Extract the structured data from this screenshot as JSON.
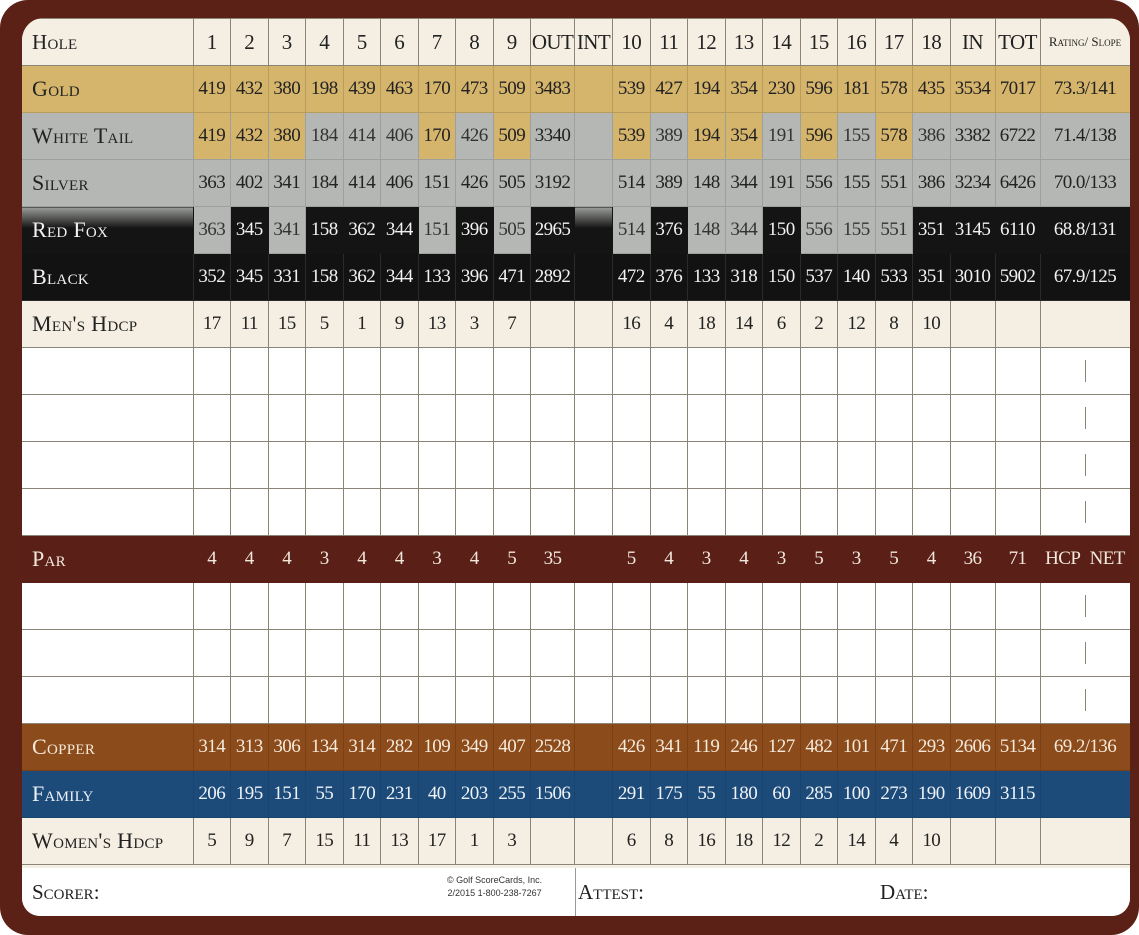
{
  "colors": {
    "gold": "#d5b46c",
    "silver": "#b4b7b3",
    "black": "#121212",
    "par": "#5a1f16",
    "copper": "#8c4b1b",
    "family": "#1d4b79",
    "frame": "#5b2116"
  },
  "header": {
    "label": "Hole",
    "front": [
      "1",
      "2",
      "3",
      "4",
      "5",
      "6",
      "7",
      "8",
      "9"
    ],
    "out": "OUT",
    "int": "INT",
    "back": [
      "10",
      "11",
      "12",
      "13",
      "14",
      "15",
      "16",
      "17",
      "18"
    ],
    "in": "IN",
    "tot": "TOT",
    "rating": "Rating/ Slope"
  },
  "rows": [
    {
      "id": "gold",
      "label": "Gold",
      "front": [
        "419",
        "432",
        "380",
        "198",
        "439",
        "463",
        "170",
        "473",
        "509"
      ],
      "out": "3483",
      "back": [
        "539",
        "427",
        "194",
        "354",
        "230",
        "596",
        "181",
        "578",
        "435"
      ],
      "in": "3534",
      "tot": "7017",
      "rating": "73.3/141"
    },
    {
      "id": "white-tail",
      "label": "White Tail",
      "front": [
        "419",
        "432",
        "380",
        "184",
        "414",
        "406",
        "170",
        "426",
        "509"
      ],
      "front_colors": [
        "gold",
        "gold",
        "gold",
        "silver",
        "silver",
        "silver",
        "gold",
        "silver",
        "gold"
      ],
      "out": "3340",
      "back": [
        "539",
        "389",
        "194",
        "354",
        "191",
        "596",
        "155",
        "578",
        "386"
      ],
      "back_colors": [
        "gold",
        "silver",
        "gold",
        "gold",
        "silver",
        "gold",
        "silver",
        "gold",
        "silver"
      ],
      "in": "3382",
      "tot": "6722",
      "rating": "71.4/138"
    },
    {
      "id": "silver",
      "label": "Silver",
      "front": [
        "363",
        "402",
        "341",
        "184",
        "414",
        "406",
        "151",
        "426",
        "505"
      ],
      "out": "3192",
      "back": [
        "514",
        "389",
        "148",
        "344",
        "191",
        "556",
        "155",
        "551",
        "386"
      ],
      "in": "3234",
      "tot": "6426",
      "rating": "70.0/133"
    },
    {
      "id": "red-fox",
      "label": "Red Fox",
      "front": [
        "363",
        "345",
        "341",
        "158",
        "362",
        "344",
        "151",
        "396",
        "505"
      ],
      "front_colors": [
        "silver",
        "black",
        "silver",
        "black",
        "black",
        "black",
        "silver",
        "black",
        "silver"
      ],
      "out": "2965",
      "back": [
        "514",
        "376",
        "148",
        "344",
        "150",
        "556",
        "155",
        "551",
        "351"
      ],
      "back_colors": [
        "silver",
        "black",
        "silver",
        "silver",
        "black",
        "silver",
        "silver",
        "silver",
        "black"
      ],
      "in": "3145",
      "tot": "6110",
      "rating": "68.8/131"
    },
    {
      "id": "black",
      "label": "Black",
      "front": [
        "352",
        "345",
        "331",
        "158",
        "362",
        "344",
        "133",
        "396",
        "471"
      ],
      "out": "2892",
      "back": [
        "472",
        "376",
        "133",
        "318",
        "150",
        "537",
        "140",
        "533",
        "351"
      ],
      "in": "3010",
      "tot": "5902",
      "rating": "67.9/125"
    },
    {
      "id": "mens-hdcp",
      "label": "Men's Hdcp",
      "front": [
        "17",
        "11",
        "15",
        "5",
        "1",
        "9",
        "13",
        "3",
        "7"
      ],
      "out": "",
      "back": [
        "16",
        "4",
        "18",
        "14",
        "6",
        "2",
        "12",
        "8",
        "10"
      ],
      "in": "",
      "tot": "",
      "rating": ""
    },
    {
      "id": "par",
      "label": "Par",
      "front": [
        "4",
        "4",
        "4",
        "3",
        "4",
        "4",
        "3",
        "4",
        "5"
      ],
      "out": "35",
      "back": [
        "5",
        "4",
        "3",
        "4",
        "3",
        "5",
        "3",
        "5",
        "4"
      ],
      "in": "36",
      "tot": "71",
      "hcp": "HCP",
      "net": "NET"
    },
    {
      "id": "copper",
      "label": "Copper",
      "front": [
        "314",
        "313",
        "306",
        "134",
        "314",
        "282",
        "109",
        "349",
        "407"
      ],
      "out": "2528",
      "back": [
        "426",
        "341",
        "119",
        "246",
        "127",
        "482",
        "101",
        "471",
        "293"
      ],
      "in": "2606",
      "tot": "5134",
      "rating": "69.2/136"
    },
    {
      "id": "family",
      "label": "Family",
      "front": [
        "206",
        "195",
        "151",
        "55",
        "170",
        "231",
        "40",
        "203",
        "255"
      ],
      "out": "1506",
      "back": [
        "291",
        "175",
        "55",
        "180",
        "60",
        "285",
        "100",
        "273",
        "190"
      ],
      "in": "1609",
      "tot": "3115",
      "rating": ""
    },
    {
      "id": "womens-hdcp",
      "label": "Women's Hdcp",
      "front": [
        "5",
        "9",
        "7",
        "15",
        "11",
        "13",
        "17",
        "1",
        "3"
      ],
      "out": "",
      "back": [
        "6",
        "8",
        "16",
        "18",
        "12",
        "2",
        "14",
        "4",
        "10"
      ],
      "in": "",
      "tot": "",
      "rating": ""
    }
  ],
  "footer": {
    "scorer": "Scorer:",
    "attest": "Attest:",
    "date": "Date:",
    "copyright_line1": "© Golf ScoreCards, Inc.",
    "copyright_line2": "2/2015   1-800-238-7267"
  }
}
